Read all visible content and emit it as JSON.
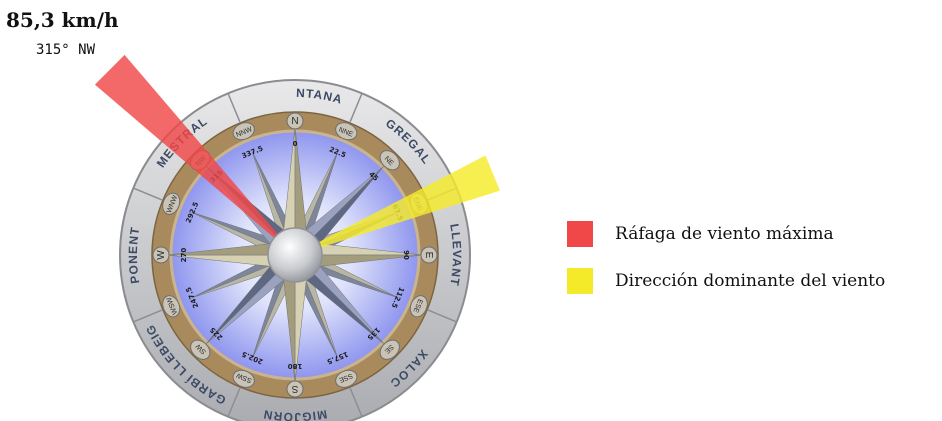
{
  "gust": {
    "speed": "85,3 km/h",
    "direction": "315° NW",
    "bearing_deg": 315,
    "color": "#f04848"
  },
  "dominant": {
    "bearing_deg": 67.5,
    "color": "#f5ea2a"
  },
  "legend": [
    {
      "label": "Ráfaga de viento máxima",
      "color": "#f04848"
    },
    {
      "label": "Dirección dominante del viento",
      "color": "#f5ea2a"
    }
  ],
  "winds": [
    {
      "name": "TRAMUNTANA",
      "angle": 0
    },
    {
      "name": "GREGAL",
      "angle": 45
    },
    {
      "name": "LLEVANT",
      "angle": 90
    },
    {
      "name": "XALOC",
      "angle": 135
    },
    {
      "name": "MIGJORN",
      "angle": 180
    },
    {
      "name": "GARBÍ LLEBEIG",
      "angle": 225
    },
    {
      "name": "PONENT",
      "angle": 270
    },
    {
      "name": "MESTRAL",
      "angle": 315
    }
  ],
  "points": [
    {
      "abbr": "N",
      "deg": "0"
    },
    {
      "abbr": "NNE",
      "deg": "22.5"
    },
    {
      "abbr": "NE",
      "deg": "45"
    },
    {
      "abbr": "ENE",
      "deg": "67.5"
    },
    {
      "abbr": "E",
      "deg": "90"
    },
    {
      "abbr": "ESE",
      "deg": "112.5"
    },
    {
      "abbr": "SE",
      "deg": "135"
    },
    {
      "abbr": "SSE",
      "deg": "157.5"
    },
    {
      "abbr": "S",
      "deg": "180"
    },
    {
      "abbr": "SSW",
      "deg": "202.5"
    },
    {
      "abbr": "SW",
      "deg": "225"
    },
    {
      "abbr": "WSW",
      "deg": "247.5"
    },
    {
      "abbr": "W",
      "deg": "270"
    },
    {
      "abbr": "WNW",
      "deg": "292.5"
    },
    {
      "abbr": "NW",
      "deg": "315"
    },
    {
      "abbr": "NNW",
      "deg": "337.5"
    }
  ]
}
